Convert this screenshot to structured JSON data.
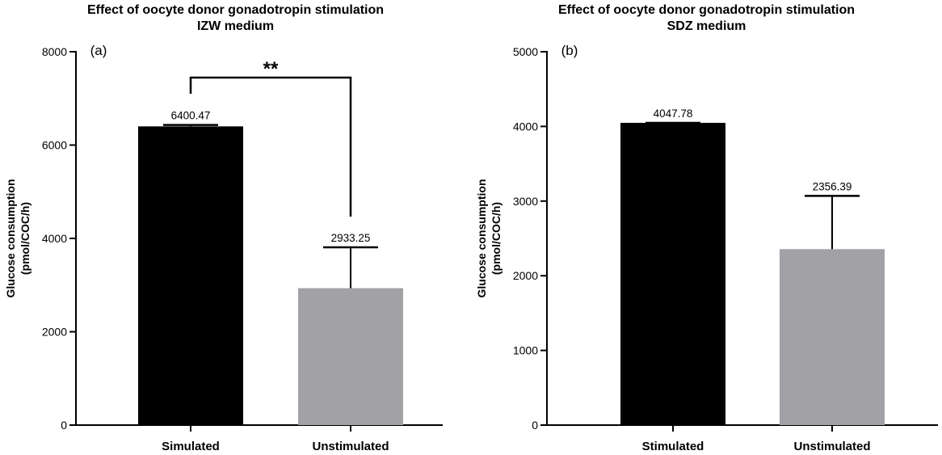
{
  "chart_data": [
    {
      "type": "bar",
      "panel_label": "(a)",
      "title": "Effect of oocyte donor gonadotropin stimulation",
      "subtitle": "IZW medium",
      "ylabel": "Glucose consumption (pmol/COC/h)",
      "ylabel_lines": [
        "Glucose consumption",
        "(pmol/COC/h)"
      ],
      "xlabel": "",
      "categories": [
        "Simulated",
        "Unstimulated"
      ],
      "values": [
        6400.47,
        2933.25
      ],
      "value_labels": [
        "6400.47",
        "2933.25"
      ],
      "error_upper": [
        6430,
        3810
      ],
      "bar_colors": [
        "#000000",
        "#a2a2a6"
      ],
      "ylim": [
        0,
        8000
      ],
      "yticks": [
        0,
        2000,
        4000,
        6000,
        8000
      ],
      "significance": {
        "label": "**",
        "between": [
          0,
          1
        ]
      },
      "grid": false,
      "legend": "none"
    },
    {
      "type": "bar",
      "panel_label": "(b)",
      "title": "Effect of oocyte donor gonadotropin stimulation",
      "subtitle": "SDZ medium",
      "ylabel": "Glucose consumption (pmol/COC/h)",
      "ylabel_lines": [
        "Glucose consumption",
        "(pmol/COC/h)"
      ],
      "xlabel": "",
      "categories": [
        "Stimulated",
        "Unstimulated"
      ],
      "values": [
        4047.78,
        2356.39
      ],
      "value_labels": [
        "4047.78",
        "2356.39"
      ],
      "error_upper": [
        4047.78,
        3070
      ],
      "bar_colors": [
        "#000000",
        "#a2a2a6"
      ],
      "ylim": [
        0,
        5000
      ],
      "yticks": [
        0,
        1000,
        2000,
        3000,
        4000,
        5000
      ],
      "grid": false,
      "legend": "none"
    }
  ]
}
